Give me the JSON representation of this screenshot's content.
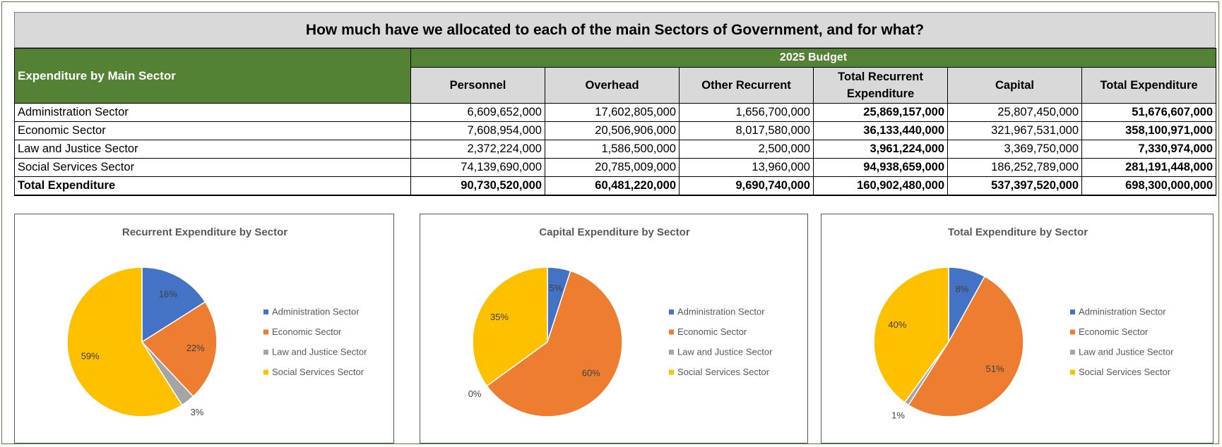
{
  "title": "How much have we allocated to each of the main Sectors of Government, and for what?",
  "table": {
    "row_header": "Expenditure by Main Sector",
    "group_header": "2025 Budget",
    "columns": [
      "Personnel",
      "Overhead",
      "Other Recurrent",
      "Total Recurrent Expenditure",
      "Capital",
      "Total Expenditure"
    ],
    "rows": [
      [
        "Administration Sector",
        "6,609,652,000",
        "17,602,805,000",
        "1,656,700,000",
        "25,869,157,000",
        "25,807,450,000",
        "51,676,607,000"
      ],
      [
        "Economic Sector",
        "7,608,954,000",
        "20,506,906,000",
        "8,017,580,000",
        "36,133,440,000",
        "321,967,531,000",
        "358,100,971,000"
      ],
      [
        "Law and Justice Sector",
        "2,372,224,000",
        "1,586,500,000",
        "2,500,000",
        "3,961,224,000",
        "3,369,750,000",
        "7,330,974,000"
      ],
      [
        "Social Services Sector",
        "74,139,690,000",
        "20,785,009,000",
        "13,960,000",
        "94,938,659,000",
        "186,252,789,000",
        "281,191,448,000"
      ],
      [
        "Total Expenditure",
        "90,730,520,000",
        "60,481,220,000",
        "9,690,740,000",
        "160,902,480,000",
        "537,397,520,000",
        "698,300,000,000"
      ]
    ]
  },
  "chart_data": [
    {
      "type": "pie",
      "title": "Recurrent Expenditure by Sector",
      "categories": [
        "Administration Sector",
        "Economic Sector",
        "Law and Justice Sector",
        "Social Services Sector"
      ],
      "values": [
        16,
        22,
        3,
        59
      ],
      "value_labels": [
        "16%",
        "22%",
        "3%",
        "59%"
      ],
      "colors": [
        "#4472c4",
        "#ed7d31",
        "#a5a5a5",
        "#ffc000"
      ],
      "legend": "right"
    },
    {
      "type": "pie",
      "title": "Capital Expenditure by Sector",
      "categories": [
        "Administration Sector",
        "Economic Sector",
        "Law and Justice Sector",
        "Social Services Sector"
      ],
      "values": [
        5,
        60,
        0,
        35
      ],
      "value_labels": [
        "5%",
        "60%",
        "0%",
        "35%"
      ],
      "colors": [
        "#4472c4",
        "#ed7d31",
        "#a5a5a5",
        "#ffc000"
      ],
      "legend": "right"
    },
    {
      "type": "pie",
      "title": "Total Expenditure by Sector",
      "categories": [
        "Administration Sector",
        "Economic Sector",
        "Law and Justice Sector",
        "Social Services Sector"
      ],
      "values": [
        8,
        51,
        1,
        40
      ],
      "value_labels": [
        "8%",
        "51%",
        "1%",
        "40%"
      ],
      "colors": [
        "#4472c4",
        "#ed7d31",
        "#a5a5a5",
        "#ffc000"
      ],
      "legend": "right"
    }
  ]
}
